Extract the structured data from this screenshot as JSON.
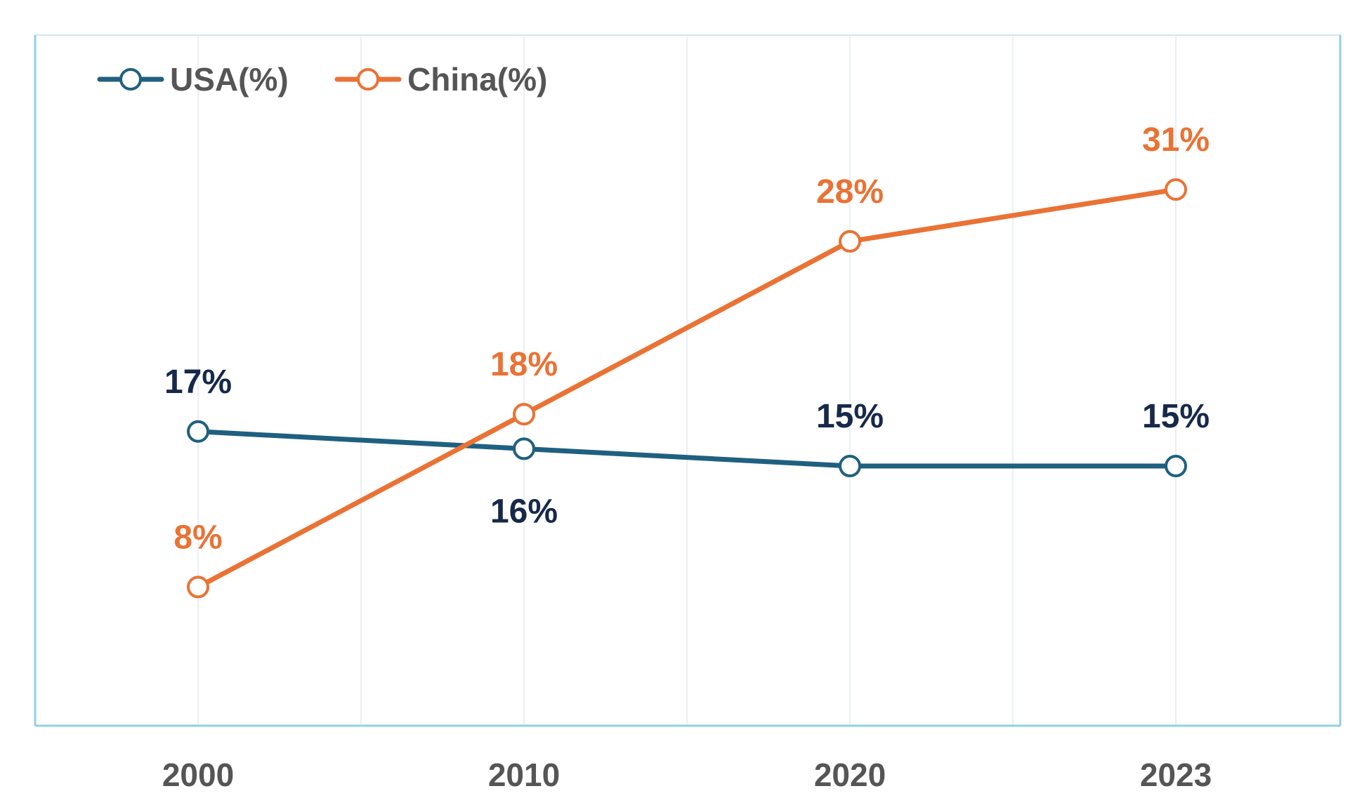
{
  "chart_data": {
    "type": "line",
    "title": "",
    "xlabel": "",
    "ylabel": "",
    "categories": [
      "2000",
      "2010",
      "2020",
      "2023"
    ],
    "ylim": [
      0,
      36
    ],
    "grid": true,
    "legend_position": "top-left",
    "series": [
      {
        "name": "USA(%)",
        "color": "#1f6080",
        "label_color": "#16294a",
        "values": [
          17,
          16,
          15,
          15
        ],
        "labels": [
          "17%",
          "16%",
          "15%",
          "15%"
        ]
      },
      {
        "name": "China(%)",
        "color": "#ea7234",
        "label_color": "#ea7234",
        "values": [
          8,
          18,
          28,
          31
        ],
        "labels": [
          "8%",
          "18%",
          "28%",
          "31%"
        ]
      }
    ]
  }
}
